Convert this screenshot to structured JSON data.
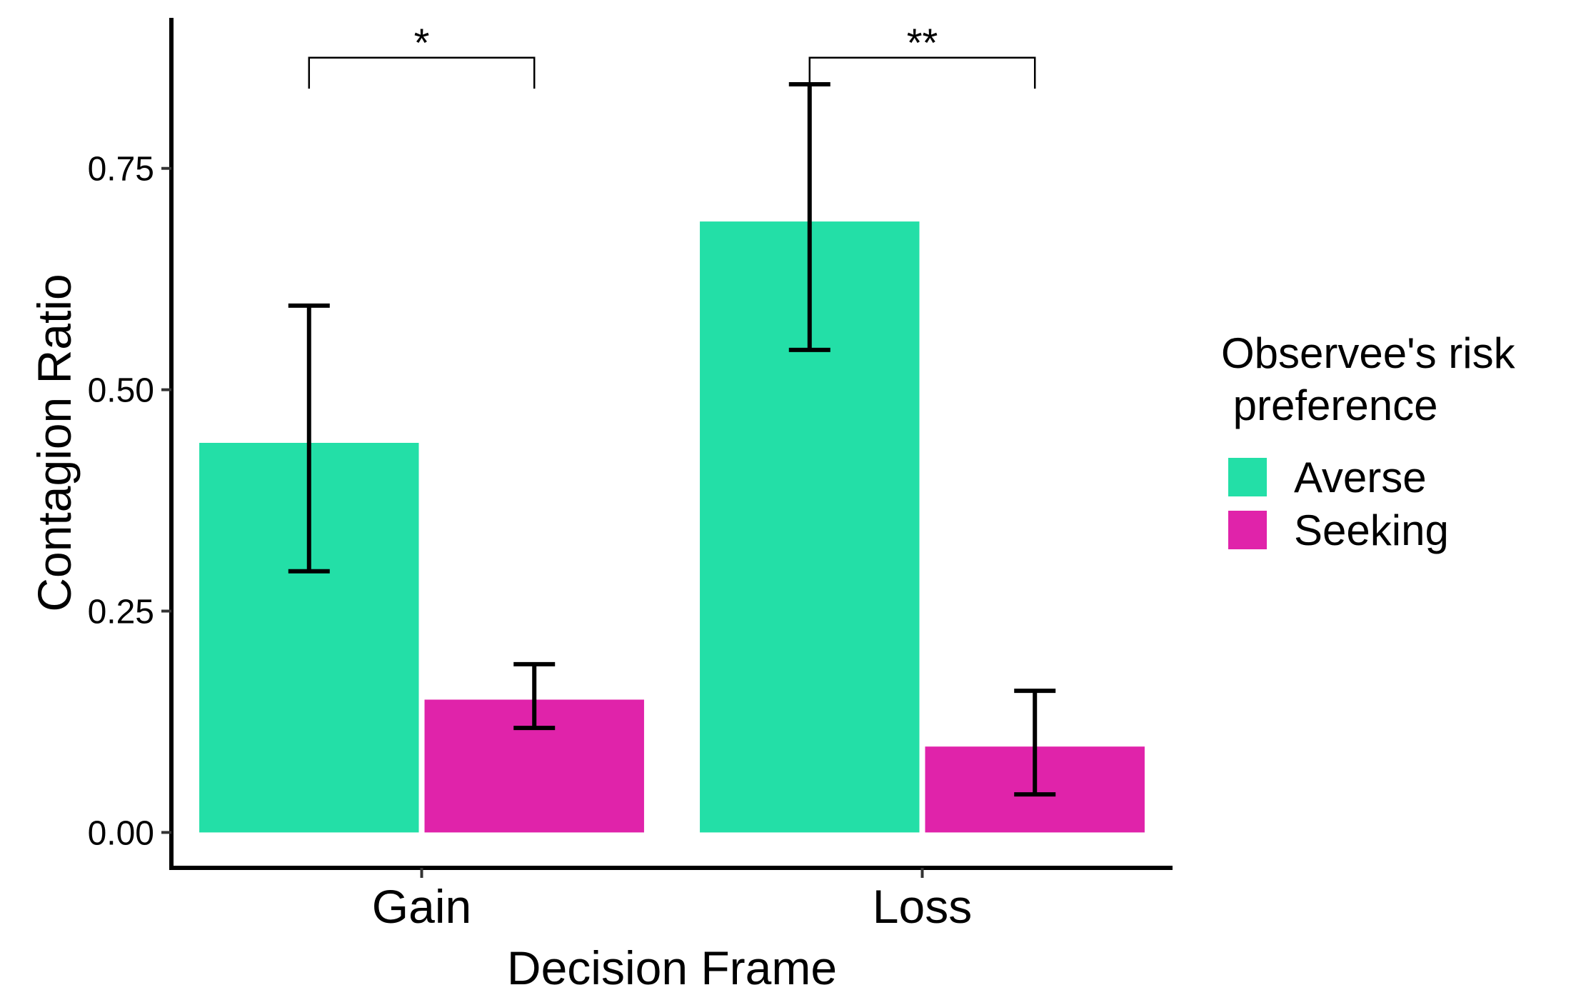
{
  "chart_data": {
    "type": "bar",
    "xlabel": "Decision Frame",
    "ylabel": "Contagion Ratio",
    "categories": [
      "Gain",
      "Loss"
    ],
    "ylim": [
      -0.04,
      0.92
    ],
    "yticks": [
      {
        "value": 0.0,
        "label": "0.00"
      },
      {
        "value": 0.25,
        "label": "0.25"
      },
      {
        "value": 0.5,
        "label": "0.50"
      },
      {
        "value": 0.75,
        "label": "0.75"
      }
    ],
    "series": [
      {
        "name": "Averse",
        "color": "#23dfa7",
        "values": [
          0.44,
          0.69
        ],
        "err_low": [
          0.295,
          0.545
        ],
        "err_high": [
          0.595,
          0.845
        ]
      },
      {
        "name": "Seeking",
        "color": "#e023aa",
        "values": [
          0.15,
          0.097
        ],
        "err_low": [
          0.118,
          0.043
        ],
        "err_high": [
          0.19,
          0.16
        ]
      }
    ],
    "legend": {
      "title_lines": [
        "Observee's risk",
        " preference"
      ],
      "position": "right"
    },
    "significance": [
      {
        "category": "Gain",
        "label": "*",
        "y": 0.875,
        "y_drop": 0.84
      },
      {
        "category": "Loss",
        "label": "**",
        "y": 0.875,
        "y_drop": 0.84
      }
    ],
    "grid": false
  }
}
